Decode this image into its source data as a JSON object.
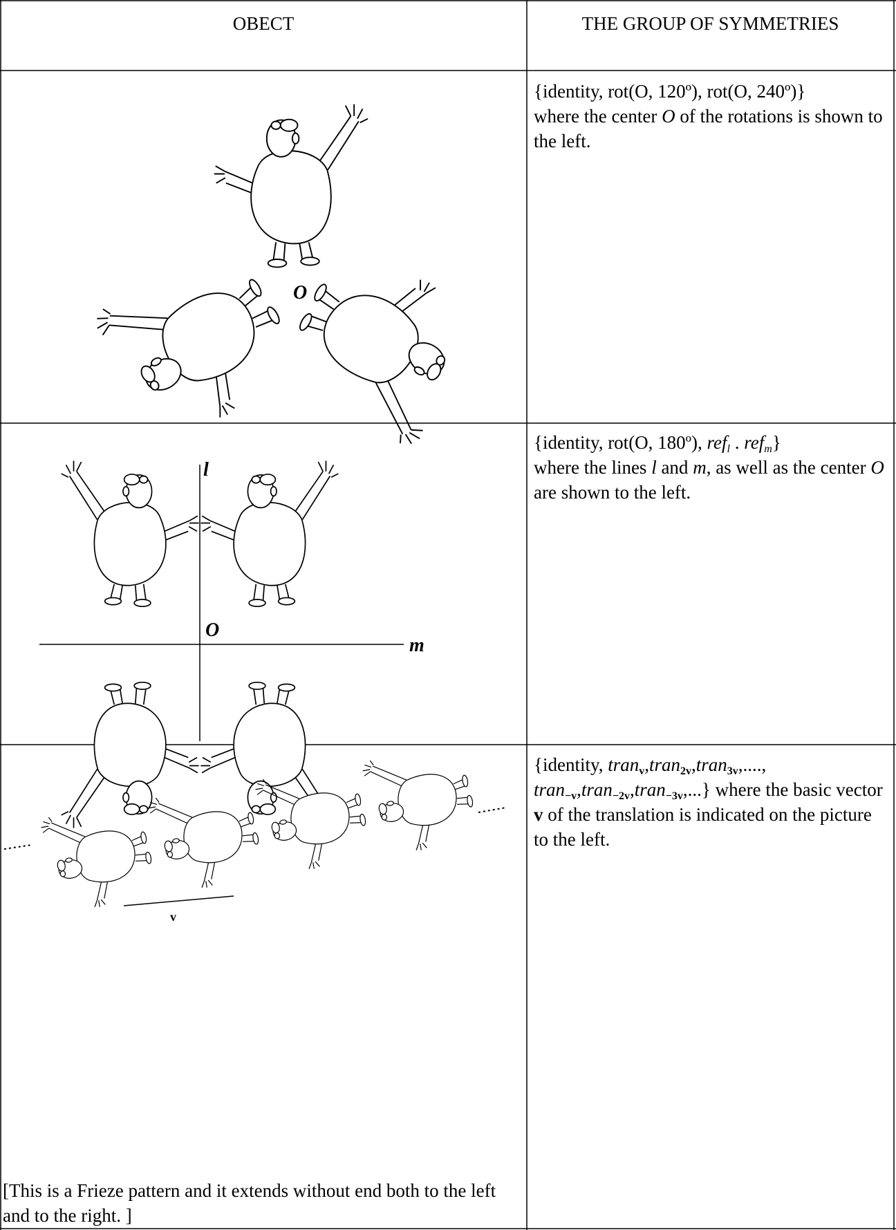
{
  "header": {
    "object": "OBECT",
    "group": "THE GROUP OF SYMMETRIES"
  },
  "rows": [
    {
      "figure_labels": [
        "O"
      ],
      "description": [
        "{identity, rot(O, 120º), rot(O, 240º)}",
        "where the center ",
        "O",
        " of the rotations is shown to the left."
      ]
    },
    {
      "figure_labels": [
        "l",
        "O",
        "m"
      ],
      "description": [
        "{identity, rot(O, 180º), ",
        "ref",
        "l",
        " . ",
        "ref",
        "m",
        "}",
        "where the lines ",
        "l",
        " and ",
        "m",
        ", as well as the center ",
        "O",
        " are shown to the left."
      ]
    },
    {
      "figure_labels": [
        "v"
      ],
      "description": [
        "{identity, ",
        "tran",
        "v",
        ",",
        "tran",
        "2v",
        ",",
        "tran",
        "3v",
        ",....,",
        "tran",
        "−v",
        ",",
        "tran",
        "−2v",
        ",",
        "tran",
        "−3v",
        ",...} where the basic vector ",
        "v",
        " of the translation is indicated on the picture to the left."
      ],
      "caption": "[This is a Frieze pattern and it extends without end both to the left and to the right. ]"
    }
  ]
}
